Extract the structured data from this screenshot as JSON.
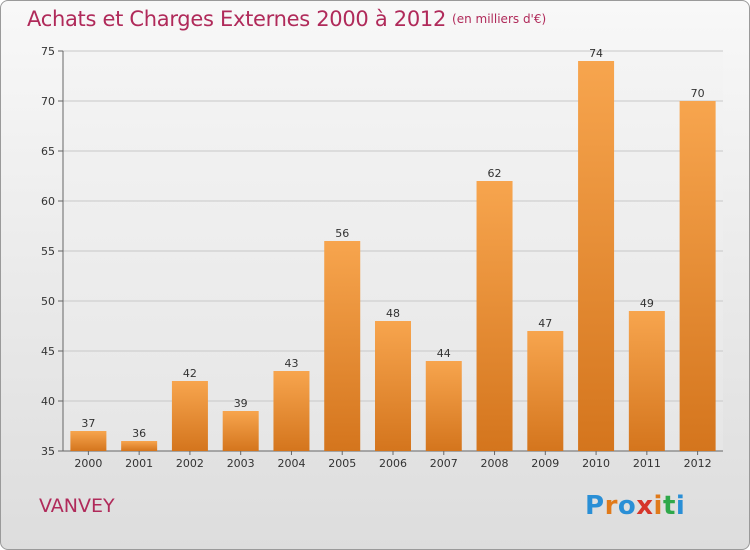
{
  "header": {
    "title": "Achats et Charges Externes 2000 à 2012",
    "subtitle": "(en milliers d'€)"
  },
  "footer": {
    "town": "VANVEY",
    "logo": "Proxiti",
    "logo_colors": [
      "#2a8fd6",
      "#e07a1a",
      "#2a8fd6",
      "#d6352a",
      "#e07a1a",
      "#2fa84a",
      "#2a8fd6"
    ]
  },
  "colors": {
    "bar_light": "#f7a54e",
    "bar_dark": "#d4751d",
    "title": "#b02a5a",
    "grid": "#c8c8c8"
  },
  "chart_data": {
    "type": "bar",
    "title": "Achats et Charges Externes 2000 à 2012",
    "subtitle": "(en milliers d'€)",
    "categories": [
      "2000",
      "2001",
      "2002",
      "2003",
      "2004",
      "2005",
      "2006",
      "2007",
      "2008",
      "2009",
      "2010",
      "2011",
      "2012"
    ],
    "values": [
      37,
      36,
      42,
      39,
      43,
      56,
      48,
      44,
      62,
      47,
      74,
      49,
      70
    ],
    "xlabel": "",
    "ylabel": "",
    "ylim": [
      35,
      75
    ],
    "yticks": [
      35,
      40,
      45,
      50,
      55,
      60,
      65,
      70,
      75
    ],
    "grid": true,
    "legend": "none"
  }
}
